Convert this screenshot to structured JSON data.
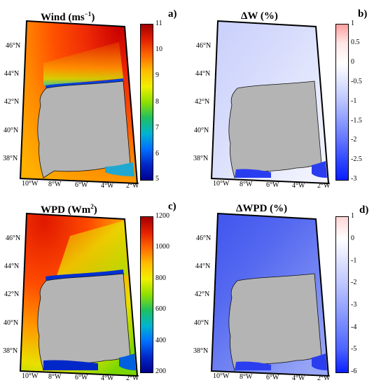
{
  "panels": [
    {
      "title": "Wind (ms",
      "title_sup": "−1",
      "title_end": ")",
      "label": "a)",
      "lat_labels": [
        "46°N",
        "44°N",
        "42°N",
        "40°N",
        "38°N"
      ],
      "lon_labels": [
        "10°W",
        "8°W",
        "6°W",
        "4°W",
        "2°W"
      ],
      "colorbar_ticks": [
        "11",
        "10",
        "9",
        "8",
        "7",
        "6",
        "5"
      ],
      "colorbar_colors": [
        "#a30000",
        "#e52000",
        "#ff6a00",
        "#ffbe00",
        "#f0f000",
        "#8ee000",
        "#20c060",
        "#00b4d0",
        "#0070ff",
        "#0028c8",
        "#000090"
      ],
      "sea_colors": [
        "#e8220a",
        "#ff5500",
        "#ffa000",
        "#f2d21a",
        "#9ee000",
        "#2fd39b",
        "#0060e0",
        "#00009a"
      ]
    },
    {
      "title": "ΔW (%)",
      "label": "b)",
      "lat_labels": [
        "46°N",
        "44°N",
        "42°N",
        "40°N",
        "38°N"
      ],
      "lon_labels": [
        "10°W",
        "8°W",
        "6°W",
        "4°W",
        "2°W"
      ],
      "colorbar_ticks": [
        "1",
        "0.5",
        "0",
        "-0.5",
        "-1",
        "-1.5",
        "-2",
        "-2.5",
        "-3"
      ],
      "colorbar_colors": [
        "#ff9f9f",
        "#ffe6e6",
        "#ffffff",
        "#e0e4ff",
        "#b8c2ff",
        "#8c9cff",
        "#6072ff",
        "#3049ff",
        "#0a1eff"
      ],
      "sea_colors": [
        "#c6cefb",
        "#d6dcfc",
        "#e2e6fd",
        "#f0f2fe",
        "#2a3ef0"
      ]
    },
    {
      "title": "WPD (Wm",
      "title_sup": "2",
      "title_end": ")",
      "label": "c)",
      "lat_labels": [
        "46°N",
        "44°N",
        "42°N",
        "40°N",
        "38°N"
      ],
      "lon_labels": [
        "10°W",
        "8°W",
        "6°W",
        "4°W",
        "2°W"
      ],
      "colorbar_ticks": [
        "1200",
        "1000",
        "800",
        "600",
        "400",
        "200"
      ],
      "colorbar_colors": [
        "#a30000",
        "#e52000",
        "#ff6a00",
        "#ffbe00",
        "#f0f000",
        "#8ee000",
        "#20c060",
        "#00b4d0",
        "#0070ff",
        "#0028c8",
        "#000090"
      ],
      "sea_colors": [
        "#e8220a",
        "#ff5500",
        "#ffa000",
        "#f2d21a",
        "#9ee000",
        "#2fd39b",
        "#0060e0",
        "#00009a"
      ]
    },
    {
      "title": "ΔWPD (%)",
      "label": "d)",
      "lat_labels": [
        "46°N",
        "44°N",
        "42°N",
        "40°N",
        "38°N"
      ],
      "lon_labels": [
        "10°W",
        "8°W",
        "6°W",
        "4°W",
        "2°W"
      ],
      "colorbar_ticks": [
        "1",
        "0",
        "-1",
        "-2",
        "-3",
        "-4",
        "-5",
        "-6"
      ],
      "colorbar_colors": [
        "#ffd6d6",
        "#ffffff",
        "#dfe3ff",
        "#bdc6ff",
        "#98a6ff",
        "#7286ff",
        "#4c64ff",
        "#2a44ff",
        "#0a20ff"
      ],
      "sea_colors": [
        "#4458ee",
        "#5a6ef2",
        "#7486f4",
        "#93a2f6",
        "#2a3ef0"
      ]
    }
  ],
  "land_color": "#b4b4b4"
}
